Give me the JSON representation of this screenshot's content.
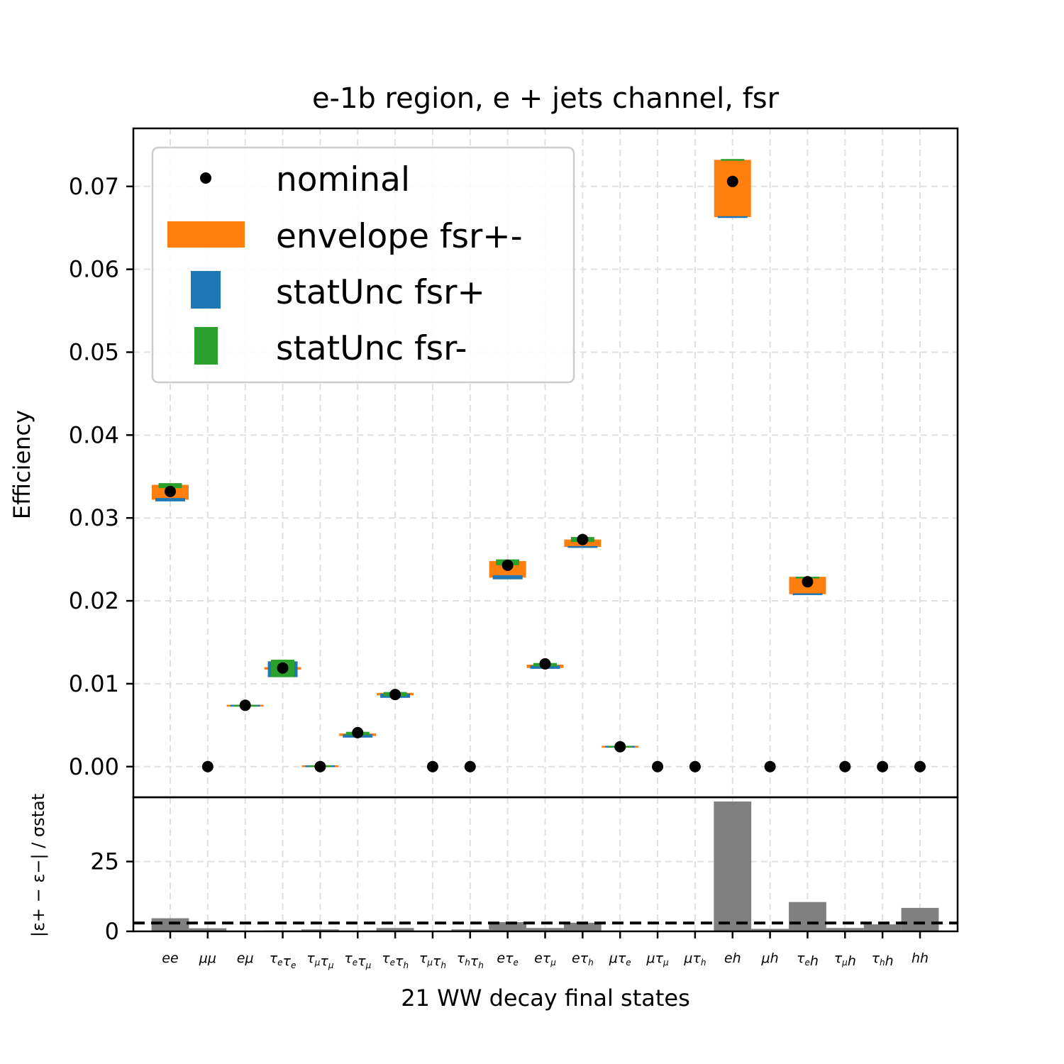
{
  "chart_data": {
    "type": "scatter",
    "title": "e-1b region, e + jets channel, fsr",
    "ylabel": "Efficiency",
    "xlabel": "21 WW decay final states",
    "ratio_ylabel": "|ε+ − ε−| / σstat",
    "categories": [
      "ee",
      "μμ",
      "eμ",
      "τeτe",
      "τμτμ",
      "τeτμ",
      "τeτh",
      "τμτh",
      "τhτh",
      "eτe",
      "eτμ",
      "eτh",
      "μτe",
      "μτμ",
      "μτh",
      "eh",
      "μh",
      "τeh",
      "τμh",
      "τhh",
      "hh"
    ],
    "ylim": [
      -0.0037,
      0.077
    ],
    "yticks": [
      0.0,
      0.01,
      0.02,
      0.03,
      0.04,
      0.05,
      0.06,
      0.07
    ],
    "ytick_labels": [
      "0.00",
      "0.01",
      "0.02",
      "0.03",
      "0.04",
      "0.05",
      "0.06",
      "0.07"
    ],
    "legend": {
      "position": "upper-left",
      "entries": [
        {
          "label": "nominal",
          "color": "#000000",
          "kind": "dot"
        },
        {
          "label": "envelope fsr+-",
          "color": "#ff7f0e",
          "kind": "bar"
        },
        {
          "label": "statUnc fsr+",
          "color": "#1f77b4",
          "kind": "bar"
        },
        {
          "label": "statUnc fsr-",
          "color": "#2ca02c",
          "kind": "bar"
        }
      ]
    },
    "series": [
      {
        "name": "nominal",
        "values": [
          0.0332,
          0.0,
          0.0074,
          0.0119,
          0.0,
          0.0041,
          0.0087,
          0.0,
          0.0,
          0.0243,
          0.0124,
          0.0274,
          0.0024,
          0.0,
          0.0,
          0.0706,
          0.0,
          0.0223,
          0.0,
          0.0,
          0.0
        ]
      },
      {
        "name": "envelope fsr+-",
        "values": [
          [
            0.0322,
            0.034
          ],
          [
            0.0,
            0.0
          ],
          [
            0.0073,
            0.0074
          ],
          [
            0.0117,
            0.012
          ],
          [
            0.0,
            0.0001
          ],
          [
            0.0037,
            0.004
          ],
          [
            0.0086,
            0.0089
          ],
          [
            0.0,
            0.0
          ],
          [
            0.0,
            0.0
          ],
          [
            0.0228,
            0.0248
          ],
          [
            0.0119,
            0.0123
          ],
          [
            0.0265,
            0.0274
          ],
          [
            0.0023,
            0.0025
          ],
          [
            0.0,
            0.0
          ],
          [
            0.0,
            0.0
          ],
          [
            0.0663,
            0.0732
          ],
          [
            0.0,
            0.0
          ],
          [
            0.0208,
            0.0229
          ],
          [
            0.0,
            0.0
          ],
          [
            0.0,
            0.0
          ],
          [
            0.0,
            0.0
          ]
        ]
      },
      {
        "name": "statUnc fsr+",
        "values": [
          [
            0.032,
            0.0324
          ],
          [
            0.0,
            0.0
          ],
          [
            0.0073,
            0.0074
          ],
          [
            0.0108,
            0.0127
          ],
          [
            0.0,
            0.0001
          ],
          [
            0.0035,
            0.0039
          ],
          [
            0.0083,
            0.0088
          ],
          [
            0.0,
            0.0
          ],
          [
            0.0,
            0.0
          ],
          [
            0.0226,
            0.0231
          ],
          [
            0.0118,
            0.0122
          ],
          [
            0.0264,
            0.0266
          ],
          [
            0.0023,
            0.0025
          ],
          [
            0.0,
            0.0
          ],
          [
            0.0,
            0.0
          ],
          [
            0.0662,
            0.0664
          ],
          [
            0.0,
            0.0
          ],
          [
            0.0207,
            0.0209
          ],
          [
            0.0,
            0.0
          ],
          [
            0.0,
            0.0
          ],
          [
            0.0,
            0.0
          ]
        ]
      },
      {
        "name": "statUnc fsr-",
        "values": [
          [
            0.0336,
            0.0342
          ],
          [
            0.0,
            0.0
          ],
          [
            0.0073,
            0.0074
          ],
          [
            0.0108,
            0.0129
          ],
          [
            0.0,
            0.0001
          ],
          [
            0.0038,
            0.0042
          ],
          [
            0.0085,
            0.009
          ],
          [
            0.0,
            0.0
          ],
          [
            0.0,
            0.0
          ],
          [
            0.0243,
            0.025
          ],
          [
            0.0121,
            0.0125
          ],
          [
            0.0271,
            0.0277
          ],
          [
            0.0023,
            0.0025
          ],
          [
            0.0,
            0.0
          ],
          [
            0.0,
            0.0
          ],
          [
            0.0731,
            0.0733
          ],
          [
            0.0,
            0.0
          ],
          [
            0.0227,
            0.0229
          ],
          [
            0.0,
            0.0
          ],
          [
            0.0,
            0.0
          ],
          [
            0.0,
            0.0
          ]
        ]
      }
    ],
    "ratio": {
      "values": [
        4.7,
        1.1,
        0.2,
        0.3,
        0.7,
        0.2,
        1.2,
        0.2,
        0.7,
        3.3,
        1.2,
        3.1,
        0.2,
        0.0,
        0.0,
        46.5,
        0.9,
        10.5,
        1.2,
        2.5,
        8.4
      ],
      "ylim": [
        0,
        48
      ],
      "yticks": [
        0,
        25
      ],
      "ytick_labels": [
        "0",
        "25"
      ],
      "threshold": 3,
      "color": "#808080"
    },
    "grid": true
  }
}
